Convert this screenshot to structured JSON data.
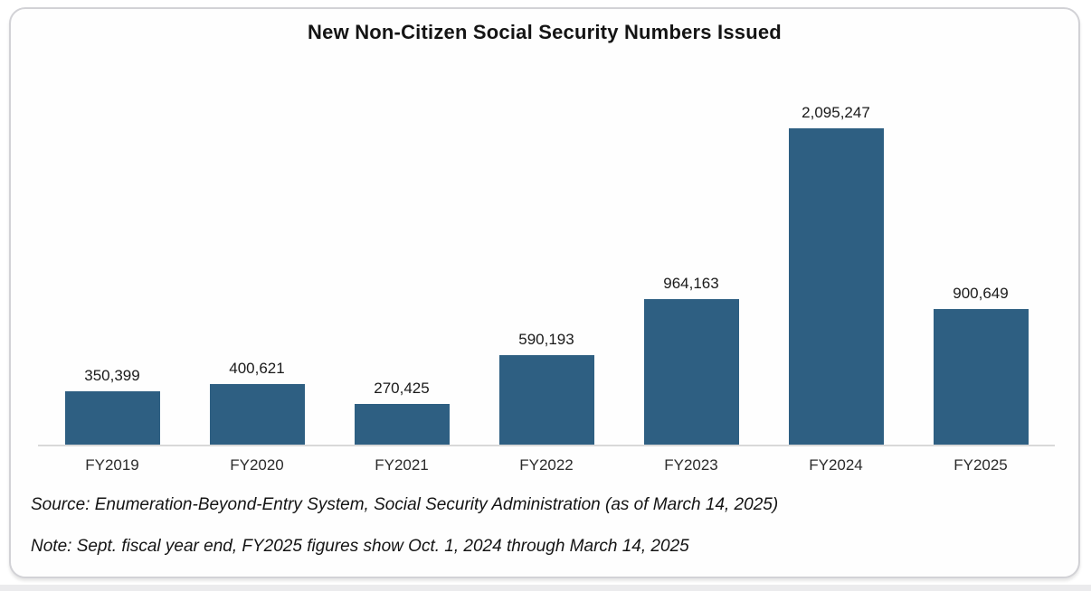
{
  "page": {
    "title": "New Non-Citizen Social Security Numbers Issued",
    "source_note": "Source: Enumeration-Beyond-Entry System, Social Security Administration (as of March 14, 2025)",
    "footnote": "Note: Sept. fiscal year end, FY2025 figures show Oct. 1, 2024 through March 14, 2025"
  },
  "colors": {
    "bar": "#2E5F82",
    "axis_line": "#D9D9D9",
    "card_border": "#D2D2D6",
    "text": "#141414"
  },
  "chart_data": {
    "type": "bar",
    "title": "New Non-Citizen Social Security Numbers Issued",
    "categories": [
      "FY2019",
      "FY2020",
      "FY2021",
      "FY2022",
      "FY2023",
      "FY2024",
      "FY2025"
    ],
    "values": [
      350399,
      400621,
      270425,
      590193,
      964163,
      2095247,
      900649
    ],
    "value_labels": [
      "350,399",
      "400,621",
      "270,425",
      "590,193",
      "964,163",
      "2,095,247",
      "900,649"
    ],
    "xlabel": "",
    "ylabel": "",
    "ylim": [
      0,
      2095247
    ],
    "grid": false,
    "legend": "none",
    "data_labels_position": "above-bar",
    "bar_color": "#2E5F82"
  }
}
